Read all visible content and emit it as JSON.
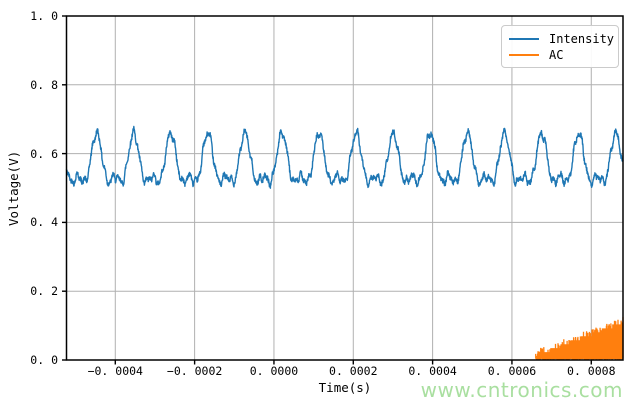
{
  "figure": {
    "background": "#ffffff",
    "watermark": {
      "text": "www.cntronics.com",
      "color": "#a9dfa0"
    }
  },
  "chart_data": {
    "type": "line",
    "title": "",
    "xlabel": "Time(s)",
    "ylabel": "Voltage(V)",
    "xlim": [
      -0.000523,
      0.00088
    ],
    "ylim": [
      0.0,
      1.0
    ],
    "grid": true,
    "grid_color": "#b0b0b0",
    "spine_color": "#000000",
    "legend": {
      "position": "upper right",
      "entries": [
        {
          "label": "Intensity",
          "color": "#1f77b4"
        },
        {
          "label": "AC",
          "color": "#ff7f0e"
        }
      ]
    },
    "xticks": {
      "values": [
        -0.0004,
        -0.0002,
        0.0,
        0.0002,
        0.0004,
        0.0006,
        0.0008
      ],
      "labels": [
        "−0. 0004",
        "−0. 0002",
        "0. 0000",
        "0. 0002",
        "0. 0004",
        "0. 0006",
        "0. 0008"
      ]
    },
    "yticks": {
      "values": [
        0.0,
        0.2,
        0.4,
        0.6,
        0.8,
        1.0
      ],
      "labels": [
        "0. 0",
        "0. 2",
        "0. 4",
        "0. 6",
        "0. 8",
        "1. 0"
      ]
    },
    "series": [
      {
        "name": "Intensity",
        "color": "#1f77b4",
        "description": "Noisy periodic waveform (~10.7 kHz) spanning the full x range, oscillating between about 0.48 V and 0.67 V around a mean of ~0.57 V, with a secondary harmonic bump between main peaks",
        "model": {
          "kind": "noisy_harmonic_sine",
          "t_start": -0.000523,
          "t_end": 0.00088,
          "mean": 0.565,
          "period_s": 9.35e-05,
          "amp_fundamental": 0.063,
          "amp_second_harmonic": 0.032,
          "phase": 0.2,
          "ripples": [
            {
              "mult": 5.3,
              "amp": 0.008,
              "phase": 1.1
            },
            {
              "mult": 9.1,
              "amp": 0.005,
              "phase": 2.3
            }
          ],
          "jitter": 0.007,
          "seed": 42
        }
      },
      {
        "name": "AC",
        "color": "#ff7f0e",
        "description": "Zero until ~0.00066 s, then dense quantized spikes stepping up from ~0.02 V to ~0.115 V at the right edge of the plot",
        "model": {
          "kind": "quantized_spike_ramp",
          "t_start": 0.00066,
          "t_end": 0.00088,
          "envelope_start": 0.018,
          "envelope_end": 0.115,
          "quantum": 0.0115,
          "baseline_max": 0.006,
          "spike_prob": 0.15,
          "points": 420,
          "seed": 7
        }
      }
    ]
  }
}
